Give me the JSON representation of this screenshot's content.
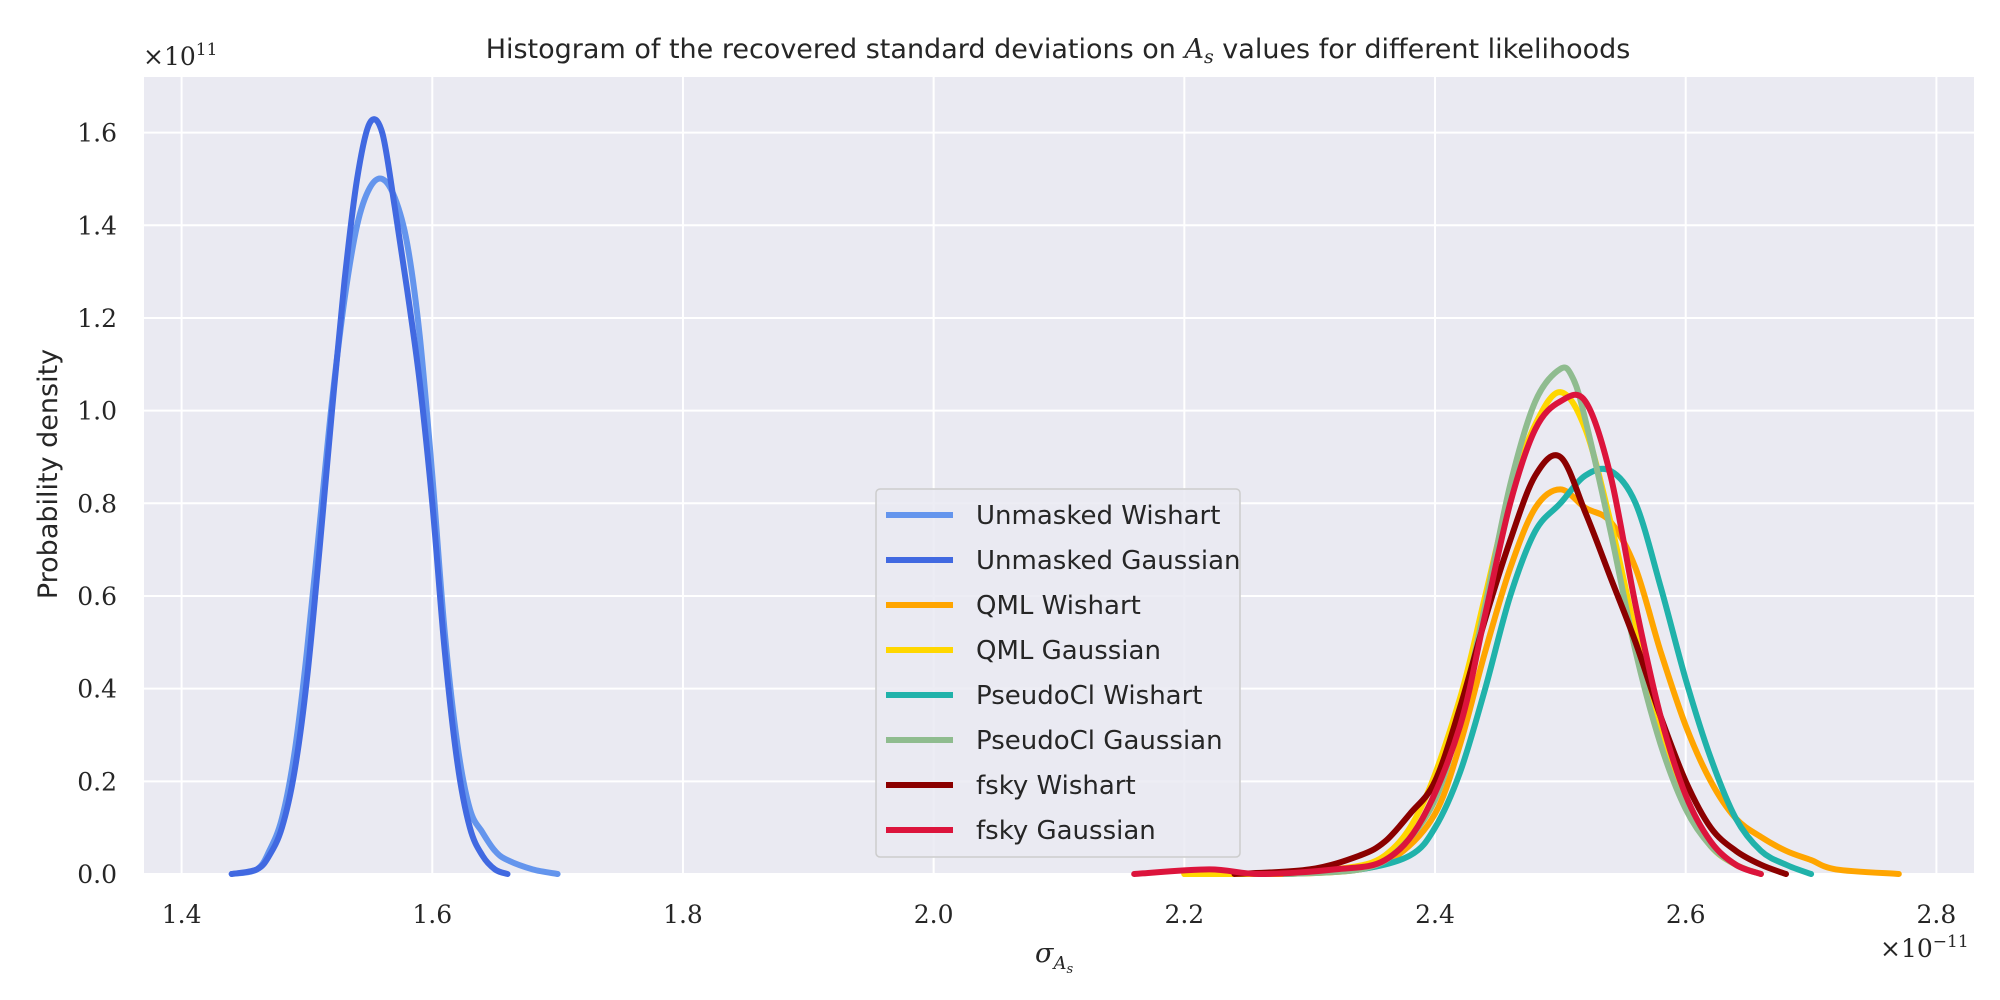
{
  "chart_data": {
    "type": "line",
    "title": "Histogram of the recovered standard deviations on A_s values for different likelihoods",
    "title_parts": {
      "before": "Histogram of the recovered standard deviations on ",
      "symbol": "A",
      "symbol_sub": "s",
      "after": " values for different likelihoods"
    },
    "xlabel": "σ",
    "xlabel_sub": "A",
    "xlabel_subsub": "s",
    "ylabel": "Probability density",
    "x_offset_label": "×10",
    "x_offset_exp": "−11",
    "y_offset_label": "×10",
    "y_offset_exp": "11",
    "xlim": [
      1.37,
      2.83
    ],
    "ylim": [
      0.0,
      1.72
    ],
    "x_ticks": [
      1.4,
      1.6,
      1.8,
      2.0,
      2.2,
      2.4,
      2.6,
      2.8
    ],
    "x_tick_labels": [
      "1.4",
      "1.6",
      "1.8",
      "2.0",
      "2.2",
      "2.4",
      "2.6",
      "2.8"
    ],
    "y_ticks": [
      0.0,
      0.2,
      0.4,
      0.6,
      0.8,
      1.0,
      1.2,
      1.4,
      1.6
    ],
    "y_tick_labels": [
      "0.0",
      "0.2",
      "0.4",
      "0.6",
      "0.8",
      "1.0",
      "1.2",
      "1.4",
      "1.6"
    ],
    "grid": true,
    "background": "#eaeaf2",
    "legend_position": "lower-center",
    "series": [
      {
        "name": "Unmasked Wishart",
        "color": "#6495ed",
        "points": [
          [
            1.44,
            0.0
          ],
          [
            1.46,
            0.01
          ],
          [
            1.47,
            0.05
          ],
          [
            1.48,
            0.12
          ],
          [
            1.49,
            0.26
          ],
          [
            1.5,
            0.48
          ],
          [
            1.51,
            0.75
          ],
          [
            1.52,
            1.02
          ],
          [
            1.53,
            1.24
          ],
          [
            1.54,
            1.4
          ],
          [
            1.55,
            1.48
          ],
          [
            1.56,
            1.5
          ],
          [
            1.57,
            1.46
          ],
          [
            1.58,
            1.36
          ],
          [
            1.59,
            1.16
          ],
          [
            1.6,
            0.86
          ],
          [
            1.61,
            0.52
          ],
          [
            1.62,
            0.28
          ],
          [
            1.63,
            0.14
          ],
          [
            1.64,
            0.09
          ],
          [
            1.65,
            0.05
          ],
          [
            1.66,
            0.03
          ],
          [
            1.68,
            0.01
          ],
          [
            1.7,
            0.0
          ]
        ]
      },
      {
        "name": "Unmasked Gaussian",
        "color": "#4169e1",
        "points": [
          [
            1.44,
            0.0
          ],
          [
            1.46,
            0.01
          ],
          [
            1.47,
            0.04
          ],
          [
            1.48,
            0.1
          ],
          [
            1.49,
            0.22
          ],
          [
            1.5,
            0.42
          ],
          [
            1.51,
            0.7
          ],
          [
            1.52,
            1.0
          ],
          [
            1.53,
            1.28
          ],
          [
            1.54,
            1.5
          ],
          [
            1.55,
            1.62
          ],
          [
            1.56,
            1.6
          ],
          [
            1.57,
            1.44
          ],
          [
            1.58,
            1.26
          ],
          [
            1.59,
            1.06
          ],
          [
            1.6,
            0.8
          ],
          [
            1.61,
            0.48
          ],
          [
            1.62,
            0.24
          ],
          [
            1.63,
            0.1
          ],
          [
            1.64,
            0.04
          ],
          [
            1.65,
            0.01
          ],
          [
            1.66,
            0.0
          ]
        ]
      },
      {
        "name": "QML Wishart",
        "color": "#ffa500",
        "points": [
          [
            2.2,
            0.0
          ],
          [
            2.28,
            0.0
          ],
          [
            2.34,
            0.01
          ],
          [
            2.37,
            0.04
          ],
          [
            2.4,
            0.13
          ],
          [
            2.42,
            0.28
          ],
          [
            2.44,
            0.48
          ],
          [
            2.46,
            0.66
          ],
          [
            2.48,
            0.79
          ],
          [
            2.5,
            0.83
          ],
          [
            2.52,
            0.79
          ],
          [
            2.54,
            0.76
          ],
          [
            2.56,
            0.66
          ],
          [
            2.58,
            0.48
          ],
          [
            2.6,
            0.32
          ],
          [
            2.62,
            0.2
          ],
          [
            2.64,
            0.12
          ],
          [
            2.66,
            0.08
          ],
          [
            2.68,
            0.05
          ],
          [
            2.7,
            0.03
          ],
          [
            2.72,
            0.01
          ],
          [
            2.77,
            0.0
          ]
        ]
      },
      {
        "name": "QML Gaussian",
        "color": "#ffd700",
        "points": [
          [
            2.2,
            0.0
          ],
          [
            2.26,
            0.0
          ],
          [
            2.32,
            0.01
          ],
          [
            2.36,
            0.04
          ],
          [
            2.39,
            0.15
          ],
          [
            2.42,
            0.38
          ],
          [
            2.44,
            0.6
          ],
          [
            2.46,
            0.82
          ],
          [
            2.48,
            0.97
          ],
          [
            2.5,
            1.04
          ],
          [
            2.52,
            0.96
          ],
          [
            2.54,
            0.76
          ],
          [
            2.56,
            0.52
          ],
          [
            2.58,
            0.3
          ],
          [
            2.6,
            0.15
          ],
          [
            2.62,
            0.06
          ],
          [
            2.64,
            0.02
          ],
          [
            2.66,
            0.0
          ]
        ]
      },
      {
        "name": "PseudoCl Wishart",
        "color": "#20b2aa",
        "points": [
          [
            2.28,
            0.0
          ],
          [
            2.34,
            0.01
          ],
          [
            2.38,
            0.04
          ],
          [
            2.4,
            0.1
          ],
          [
            2.42,
            0.22
          ],
          [
            2.44,
            0.4
          ],
          [
            2.46,
            0.6
          ],
          [
            2.48,
            0.74
          ],
          [
            2.5,
            0.8
          ],
          [
            2.52,
            0.86
          ],
          [
            2.54,
            0.87
          ],
          [
            2.56,
            0.8
          ],
          [
            2.58,
            0.62
          ],
          [
            2.6,
            0.42
          ],
          [
            2.62,
            0.25
          ],
          [
            2.64,
            0.12
          ],
          [
            2.66,
            0.05
          ],
          [
            2.68,
            0.02
          ],
          [
            2.7,
            0.0
          ]
        ]
      },
      {
        "name": "PseudoCl Gaussian",
        "color": "#8fbc8f",
        "points": [
          [
            2.28,
            0.0
          ],
          [
            2.34,
            0.01
          ],
          [
            2.37,
            0.05
          ],
          [
            2.4,
            0.16
          ],
          [
            2.42,
            0.34
          ],
          [
            2.44,
            0.58
          ],
          [
            2.46,
            0.84
          ],
          [
            2.48,
            1.02
          ],
          [
            2.5,
            1.09
          ],
          [
            2.51,
            1.07
          ],
          [
            2.52,
            0.98
          ],
          [
            2.54,
            0.74
          ],
          [
            2.56,
            0.48
          ],
          [
            2.58,
            0.28
          ],
          [
            2.6,
            0.14
          ],
          [
            2.62,
            0.06
          ],
          [
            2.64,
            0.02
          ],
          [
            2.66,
            0.0
          ]
        ]
      },
      {
        "name": "fsky Wishart",
        "color": "#8b0000",
        "points": [
          [
            2.24,
            0.0
          ],
          [
            2.3,
            0.01
          ],
          [
            2.34,
            0.04
          ],
          [
            2.36,
            0.07
          ],
          [
            2.38,
            0.13
          ],
          [
            2.4,
            0.2
          ],
          [
            2.42,
            0.36
          ],
          [
            2.44,
            0.55
          ],
          [
            2.46,
            0.72
          ],
          [
            2.48,
            0.86
          ],
          [
            2.5,
            0.9
          ],
          [
            2.52,
            0.78
          ],
          [
            2.54,
            0.64
          ],
          [
            2.56,
            0.5
          ],
          [
            2.58,
            0.34
          ],
          [
            2.6,
            0.2
          ],
          [
            2.62,
            0.1
          ],
          [
            2.64,
            0.05
          ],
          [
            2.66,
            0.02
          ],
          [
            2.68,
            0.0
          ]
        ]
      },
      {
        "name": "fsky Gaussian",
        "color": "#dc143c",
        "points": [
          [
            2.16,
            0.0
          ],
          [
            2.22,
            0.01
          ],
          [
            2.26,
            0.0
          ],
          [
            2.32,
            0.01
          ],
          [
            2.36,
            0.03
          ],
          [
            2.39,
            0.12
          ],
          [
            2.42,
            0.32
          ],
          [
            2.44,
            0.56
          ],
          [
            2.46,
            0.8
          ],
          [
            2.48,
            0.96
          ],
          [
            2.5,
            1.02
          ],
          [
            2.52,
            1.02
          ],
          [
            2.54,
            0.86
          ],
          [
            2.56,
            0.58
          ],
          [
            2.58,
            0.34
          ],
          [
            2.6,
            0.17
          ],
          [
            2.62,
            0.07
          ],
          [
            2.64,
            0.02
          ],
          [
            2.66,
            0.0
          ]
        ]
      }
    ]
  }
}
